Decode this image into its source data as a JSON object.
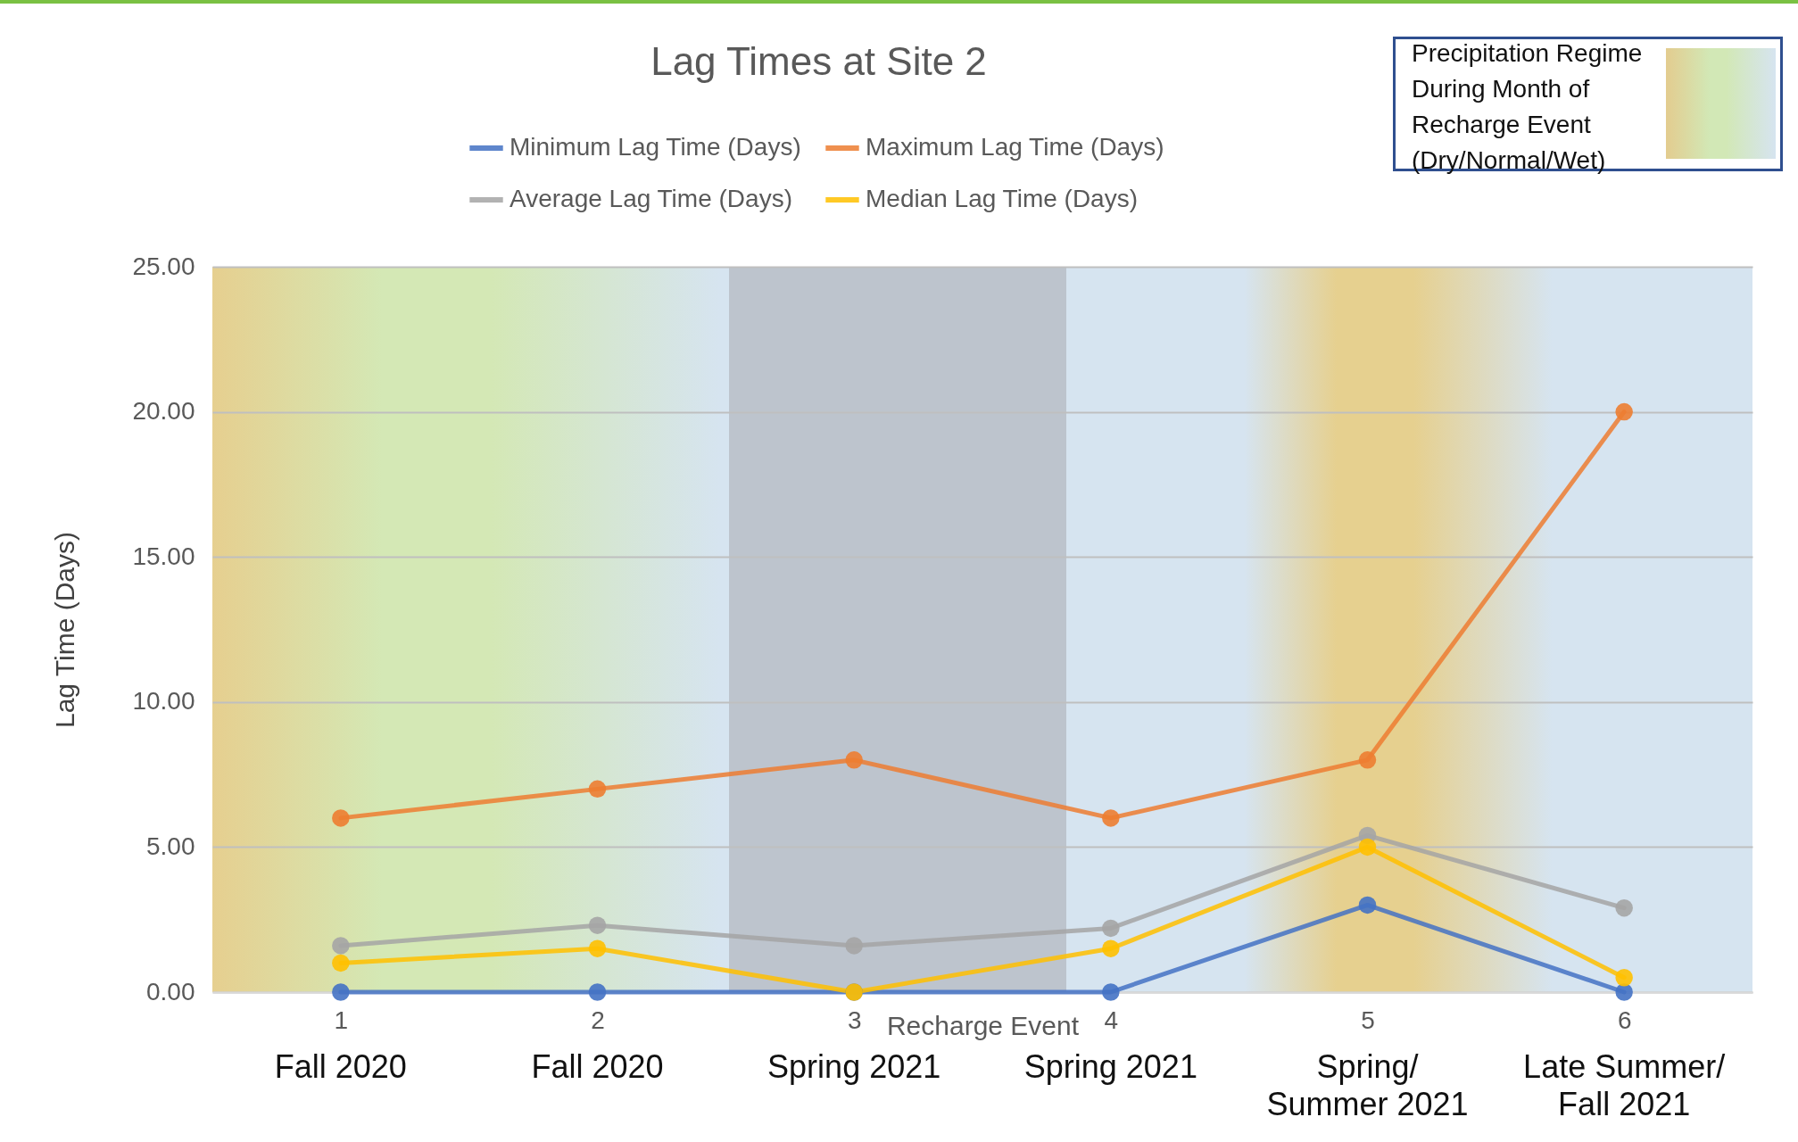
{
  "chart_data": {
    "type": "line",
    "title": "Lag Times at Site 2",
    "xlabel": "Recharge Event",
    "ylabel": "Lag Time (Days)",
    "categories": [
      "1",
      "2",
      "3",
      "4",
      "5",
      "6"
    ],
    "series": [
      {
        "name": "Minimum Lag Time (Days)",
        "color": "#4472c4",
        "values": [
          0,
          0,
          0,
          0,
          3,
          0
        ]
      },
      {
        "name": "Maximum Lag Time (Days)",
        "color": "#ed7d31",
        "values": [
          6,
          7,
          8,
          6,
          8,
          20
        ]
      },
      {
        "name": "Average Lag Time (Days)",
        "color": "#a5a5a5",
        "values": [
          1.6,
          2.3,
          1.6,
          2.2,
          5.4,
          2.9
        ]
      },
      {
        "name": "Median Lag Time (Days)",
        "color": "#ffc000",
        "values": [
          1,
          1.5,
          0,
          1.5,
          5,
          0.5
        ]
      }
    ],
    "ylim": [
      0,
      25
    ],
    "yticks": [
      {
        "value": 0,
        "label": "0.00"
      },
      {
        "value": 5,
        "label": "5.00"
      },
      {
        "value": 10,
        "label": "10.00"
      },
      {
        "value": 15,
        "label": "15.00"
      },
      {
        "value": 20,
        "label": "20.00"
      },
      {
        "value": 25,
        "label": "25.00"
      }
    ],
    "grid": "y",
    "legend": "top",
    "marker": "circle",
    "line_style": "solid",
    "annotations": [
      "Fall 2020",
      "Fall 2020",
      "Spring 2021",
      "Spring 2021",
      "Spring/\nSummer 2021",
      "Late Summer/\nFall 2021",
      "Precipitation Regime\nDuring Month of\nRecharge Event\n(Dry/Normal/Wet)"
    ]
  }
}
